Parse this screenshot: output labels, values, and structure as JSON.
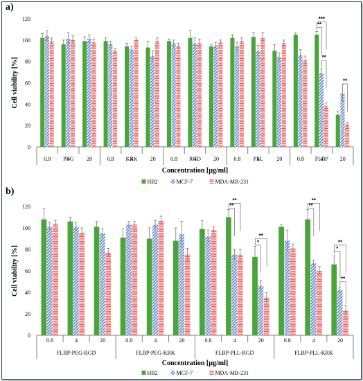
{
  "colors": {
    "HB2": "#4aa53a",
    "MCF-7": "#5b7fc4",
    "MDA-MB-231": "#ef5a5a"
  },
  "legend": [
    {
      "name": "HB2",
      "style": "solid"
    },
    {
      "name": "MCF-7",
      "style": "diagonal"
    },
    {
      "name": "MDA-MB-231",
      "style": "horizontal"
    }
  ],
  "chart_data": [
    {
      "panel": "a)",
      "type": "bar",
      "ylabel": "Cell viability [%]",
      "xlabel": "Concentration [µg/ml]",
      "ylim": [
        0,
        120
      ],
      "yticks": [
        0,
        20,
        40,
        60,
        80,
        100,
        120
      ],
      "grid": false,
      "legend_position": "bottom",
      "concentrations": [
        "0.8",
        "4",
        "20"
      ],
      "groups": [
        {
          "name": "PEG",
          "HB2": [
            102,
            96,
            99
          ],
          "MCF-7": [
            104,
            101,
            101
          ],
          "MDA-MB-231": [
            99,
            100,
            98
          ],
          "err_HB2": [
            4,
            4,
            4
          ],
          "err_MCF-7": [
            5,
            6,
            4
          ],
          "err_MDA-MB-231": [
            3,
            4,
            3
          ]
        },
        {
          "name": "KRK",
          "HB2": [
            99,
            94,
            93
          ],
          "MCF-7": [
            96,
            91,
            85
          ],
          "MDA-MB-231": [
            90,
            100,
            99
          ],
          "err_HB2": [
            3,
            3,
            6
          ],
          "err_MCF-7": [
            3,
            3,
            5
          ],
          "err_MDA-MB-231": [
            2,
            2,
            3
          ]
        },
        {
          "name": "RGD",
          "HB2": [
            99,
            102,
            94
          ],
          "MCF-7": [
            97,
            97,
            95
          ],
          "MDA-MB-231": [
            94,
            97,
            98
          ],
          "err_HB2": [
            2,
            7,
            2
          ],
          "err_MCF-7": [
            3,
            5,
            3
          ],
          "err_MDA-MB-231": [
            3,
            4,
            2
          ]
        },
        {
          "name": "PLL",
          "HB2": [
            102,
            103,
            90
          ],
          "MCF-7": [
            94,
            90,
            84
          ],
          "MDA-MB-231": [
            99,
            102,
            97
          ],
          "err_HB2": [
            3,
            4,
            6
          ],
          "err_MCF-7": [
            4,
            5,
            4
          ],
          "err_MDA-MB-231": [
            3,
            5,
            3
          ]
        },
        {
          "name": "FLBP",
          "HB2": [
            105,
            105,
            30
          ],
          "MCF-7": [
            86,
            69,
            50
          ],
          "MDA-MB-231": [
            81,
            38,
            21
          ],
          "err_HB2": [
            2,
            3,
            3
          ],
          "err_MCF-7": [
            5,
            4,
            8
          ],
          "err_MDA-MB-231": [
            4,
            3,
            2
          ]
        }
      ],
      "significance": [
        {
          "label": "***",
          "group": 4,
          "conc": 1,
          "from": "HB2",
          "to": "MDA-MB-231",
          "y": 117
        },
        {
          "label": "**",
          "group": 4,
          "conc": 1,
          "from": "HB2",
          "to": "MCF-7",
          "y": 112
        },
        {
          "label": "**",
          "group": 4,
          "conc": 1,
          "from": "MCF-7",
          "to": "MDA-MB-231",
          "y": 81
        },
        {
          "label": "**",
          "group": 4,
          "conc": 2,
          "from": "MCF-7",
          "to": "MDA-MB-231",
          "y": 59
        }
      ]
    },
    {
      "panel": "b)",
      "type": "bar",
      "ylabel": "Cell viability [%]",
      "xlabel": "Concentration [µg/ml]",
      "ylim": [
        0,
        120
      ],
      "yticks": [
        0,
        20,
        40,
        60,
        80,
        100,
        120
      ],
      "grid": false,
      "legend_position": "bottom",
      "concentrations": [
        "0.8",
        "4",
        "20"
      ],
      "groups": [
        {
          "name": "FLBP-PEG-RGD",
          "HB2": [
            108,
            106,
            101
          ],
          "MCF-7": [
            101,
            101,
            95
          ],
          "MDA-MB-231": [
            104,
            96,
            77
          ],
          "err_HB2": [
            10,
            4,
            5
          ],
          "err_MCF-7": [
            4,
            4,
            4
          ],
          "err_MDA-MB-231": [
            3,
            4,
            4
          ]
        },
        {
          "name": "FLBP-PEG-KRK",
          "HB2": [
            91,
            90,
            88
          ],
          "MCF-7": [
            103,
            103,
            94
          ],
          "MDA-MB-231": [
            103,
            107,
            75
          ],
          "err_HB2": [
            8,
            10,
            12
          ],
          "err_MCF-7": [
            3,
            4,
            12
          ],
          "err_MDA-MB-231": [
            3,
            4,
            6
          ]
        },
        {
          "name": "FLBP-PLL-RGD",
          "HB2": [
            99,
            110,
            73
          ],
          "MCF-7": [
            92,
            75,
            46
          ],
          "MDA-MB-231": [
            98,
            75,
            35
          ],
          "err_HB2": [
            8,
            7,
            10
          ],
          "err_MCF-7": [
            6,
            5,
            5
          ],
          "err_MDA-MB-231": [
            3,
            5,
            5
          ]
        },
        {
          "name": "FLBP-PLL-KRK",
          "HB2": [
            101,
            108,
            66
          ],
          "MCF-7": [
            88,
            67,
            42
          ],
          "MDA-MB-231": [
            81,
            60,
            23
          ],
          "err_HB2": [
            2,
            9,
            8
          ],
          "err_MCF-7": [
            10,
            3,
            3
          ],
          "err_MDA-MB-231": [
            4,
            4,
            5
          ]
        }
      ],
      "significance": [
        {
          "label": "**",
          "group": 2,
          "conc": 1,
          "from": "HB2",
          "to": "MDA-MB-231",
          "y": 123
        },
        {
          "label": "**",
          "group": 2,
          "conc": 1,
          "from": "HB2",
          "to": "MCF-7",
          "y": 118
        },
        {
          "label": "**",
          "group": 2,
          "conc": 2,
          "from": "HB2",
          "to": "MDA-MB-231",
          "y": 90
        },
        {
          "label": "*",
          "group": 2,
          "conc": 2,
          "from": "HB2",
          "to": "MCF-7",
          "y": 84
        },
        {
          "label": "**",
          "group": 3,
          "conc": 1,
          "from": "HB2",
          "to": "MDA-MB-231",
          "y": 123
        },
        {
          "label": "**",
          "group": 3,
          "conc": 1,
          "from": "HB2",
          "to": "MCF-7",
          "y": 118
        },
        {
          "label": "**",
          "group": 3,
          "conc": 2,
          "from": "HB2",
          "to": "MDA-MB-231",
          "y": 84
        },
        {
          "label": "*",
          "group": 3,
          "conc": 2,
          "from": "HB2",
          "to": "MCF-7",
          "y": 78
        },
        {
          "label": "**",
          "group": 3,
          "conc": 2,
          "from": "MCF-7",
          "to": "MDA-MB-231",
          "y": 50
        }
      ]
    }
  ]
}
